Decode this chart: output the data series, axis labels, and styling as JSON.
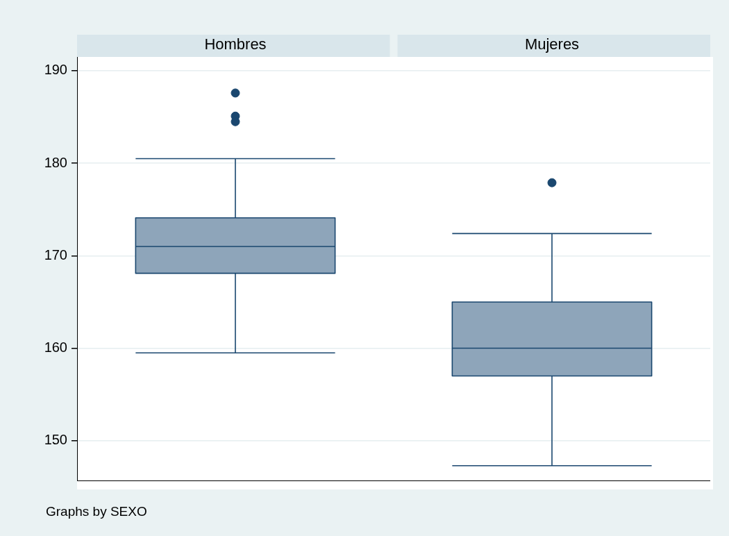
{
  "chart_data": {
    "type": "box",
    "categories": [
      "Hombres",
      "Mujeres"
    ],
    "series": [
      {
        "color": "#8ea5ba",
        "boxes": [
          {
            "low": 159.5,
            "q1": 168.1,
            "median": 171.0,
            "q3": 174.1,
            "high": 180.5,
            "outliers": [
              184.5,
              185.1,
              187.6
            ]
          },
          {
            "low": 147.3,
            "q1": 157.0,
            "median": 160.0,
            "q3": 165.0,
            "high": 172.4,
            "outliers": [
              177.9
            ]
          }
        ]
      }
    ],
    "ylim": [
      145.7,
      191.5
    ],
    "yticks": [
      150,
      160,
      170,
      180,
      190
    ],
    "grid": "y",
    "annotations": [
      "Graphs by SEXO"
    ]
  }
}
